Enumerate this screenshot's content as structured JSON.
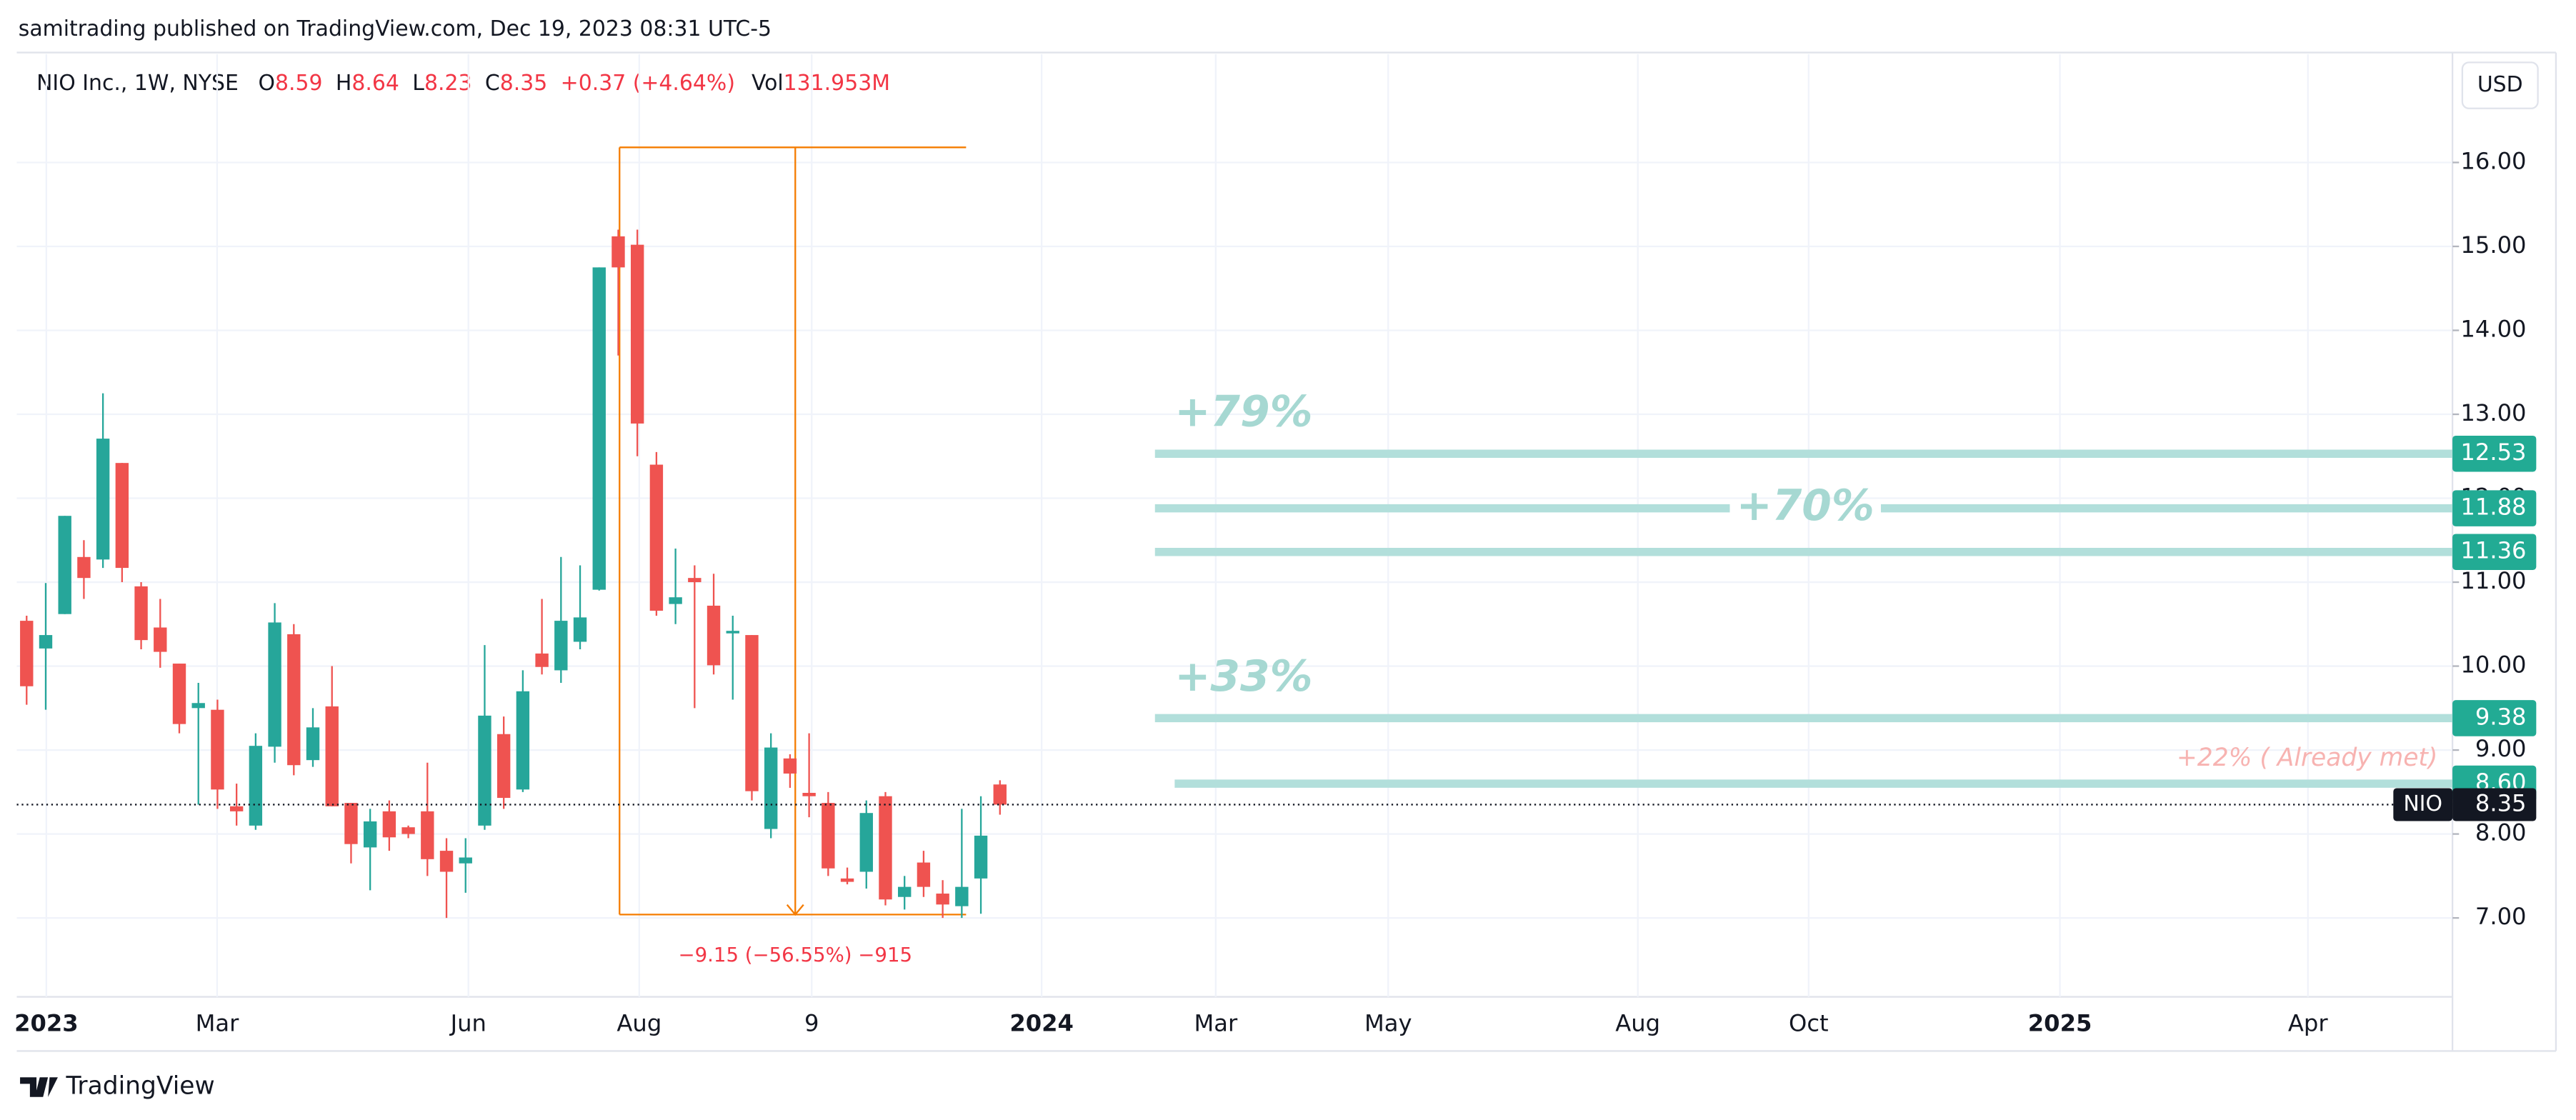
{
  "header": {
    "publisher": "samitrading published on TradingView.com, Dec 19, 2023 08:31 UTC-5",
    "brand": "TradingView"
  },
  "chart_data": {
    "type": "candlestick",
    "legend": {
      "symbol": "NIO Inc., 1W, NYSE",
      "keys": [
        "O",
        "H",
        "L",
        "C"
      ],
      "change": "+0.37 (+4.64%)",
      "volume_key": "Vol",
      "volume": "131.953M"
    },
    "currency": "USD",
    "x_labels": [
      "2023",
      "Mar",
      "Jun",
      "Aug",
      "9",
      "2024",
      "Mar",
      "May",
      "Aug",
      "Oct",
      "2025",
      "Apr"
    ],
    "open": [
      10.54,
      10.21,
      10.62,
      11.3,
      11.27,
      12.42,
      10.95,
      10.46,
      10.03,
      9.5,
      9.48,
      8.33,
      8.1,
      9.04,
      10.38,
      8.88,
      9.52,
      8.37,
      7.84,
      8.27,
      8.08,
      8.27,
      7.8,
      7.65,
      8.1,
      9.19,
      8.53,
      10.15,
      9.95,
      10.29,
      10.91,
      15.12,
      15.02,
      12.4,
      10.74,
      11.05,
      10.72,
      10.39,
      10.37,
      8.06,
      8.9,
      8.49,
      8.37,
      7.47,
      7.55,
      8.45,
      7.25,
      7.66,
      7.29,
      7.14,
      7.47,
      8.59
    ],
    "high": [
      10.6,
      10.99,
      11.79,
      11.5,
      13.25,
      12.42,
      11.0,
      10.8,
      10.03,
      9.8,
      9.6,
      8.6,
      9.2,
      10.75,
      10.5,
      9.5,
      10.0,
      8.37,
      8.3,
      8.4,
      8.1,
      8.85,
      7.95,
      7.95,
      10.25,
      9.4,
      9.95,
      10.8,
      11.3,
      11.2,
      14.75,
      15.2,
      15.2,
      12.55,
      11.4,
      11.2,
      11.1,
      10.6,
      10.37,
      9.2,
      8.95,
      9.2,
      8.5,
      7.6,
      8.4,
      8.5,
      7.5,
      7.8,
      7.45,
      8.3,
      8.45,
      8.64
    ],
    "low": [
      9.54,
      9.48,
      10.62,
      10.8,
      11.17,
      11.0,
      10.2,
      9.98,
      9.2,
      8.35,
      8.3,
      8.1,
      8.05,
      8.85,
      8.7,
      8.8,
      8.33,
      7.65,
      7.33,
      7.8,
      7.95,
      7.5,
      7.0,
      7.3,
      8.05,
      8.3,
      8.5,
      9.9,
      9.8,
      10.2,
      10.9,
      13.7,
      12.5,
      10.6,
      10.5,
      9.5,
      9.9,
      9.6,
      8.4,
      7.95,
      8.55,
      8.2,
      7.5,
      7.4,
      7.35,
      7.15,
      7.1,
      7.25,
      7.0,
      7.0,
      7.05,
      8.23
    ],
    "close": [
      9.76,
      10.37,
      11.79,
      11.05,
      12.71,
      11.17,
      10.31,
      10.17,
      9.31,
      9.56,
      8.53,
      8.27,
      9.05,
      10.52,
      8.82,
      9.27,
      8.33,
      7.88,
      8.15,
      7.96,
      8.0,
      7.7,
      7.55,
      7.72,
      9.41,
      8.43,
      9.7,
      9.99,
      10.54,
      10.58,
      14.75,
      14.75,
      12.89,
      10.66,
      10.82,
      11.0,
      10.01,
      10.42,
      8.51,
      9.03,
      8.72,
      8.45,
      7.59,
      7.43,
      8.25,
      7.22,
      7.37,
      7.37,
      7.16,
      7.37,
      7.98,
      8.35
    ],
    "up_color": "#26a69a",
    "down_color": "#ef5350",
    "ylim": [
      6.06,
      17.29
    ],
    "yticks": [
      {
        "value": 7,
        "label": "7.00"
      },
      {
        "value": 8,
        "label": "8.00"
      },
      {
        "value": 9,
        "label": "9.00"
      },
      {
        "value": 10,
        "label": "10.00"
      },
      {
        "value": 11,
        "label": "11.00"
      },
      {
        "value": 12,
        "label": "12.00"
      },
      {
        "value": 13,
        "label": "13.00"
      },
      {
        "value": 14,
        "label": "14.00"
      },
      {
        "value": 15,
        "label": "15.00"
      },
      {
        "value": 16,
        "label": "16.00"
      }
    ],
    "grid": true,
    "levels": {
      "values": [
        12.53,
        11.88,
        11.36,
        9.38,
        8.6
      ],
      "value_labels": [
        "12.53",
        "11.88",
        "11.36",
        "9.38",
        "8.60"
      ],
      "labels": [
        "+79%",
        "+70%",
        null,
        "+33%",
        "+22% ( Already met)"
      ],
      "color": "#b2dfdb",
      "badge_color": "#22ab94"
    },
    "last": {
      "symbol": "NIO",
      "value": 8.35
    },
    "measure": {
      "high": 16.18,
      "low": 7.04,
      "label": "−9.15 (−56.55%) −915",
      "color": "#f57c00"
    }
  }
}
